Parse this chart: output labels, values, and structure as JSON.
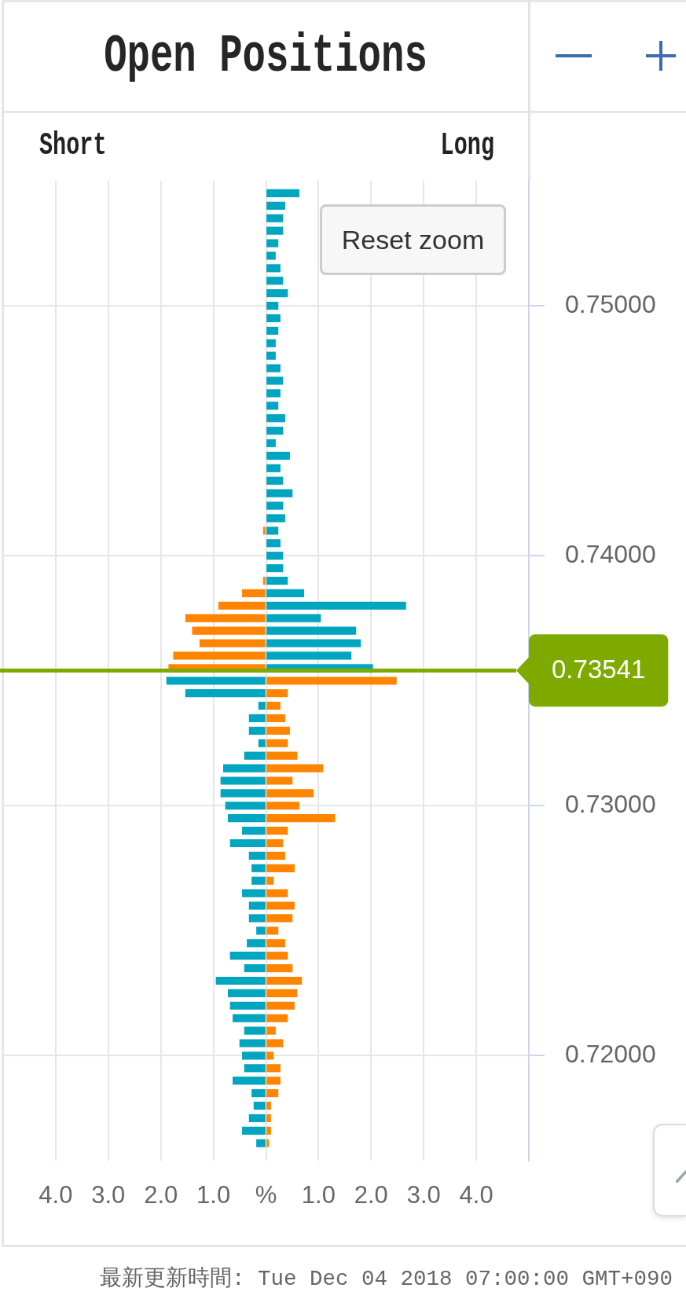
{
  "chart_data": {
    "type": "bar",
    "orientation": "horizontal",
    "stacked": true,
    "title": "Open Positions",
    "x": [
      0.7545,
      0.754,
      0.7535,
      0.753,
      0.7525,
      0.752,
      0.7515,
      0.751,
      0.7505,
      0.75,
      0.7495,
      0.749,
      0.7485,
      0.748,
      0.7475,
      0.747,
      0.7465,
      0.746,
      0.7455,
      0.745,
      0.7445,
      0.744,
      0.7435,
      0.743,
      0.7425,
      0.742,
      0.7415,
      0.741,
      0.7405,
      0.74,
      0.7395,
      0.739,
      0.7385,
      0.738,
      0.7375,
      0.737,
      0.7365,
      0.736,
      0.7355,
      0.735,
      0.7345,
      0.734,
      0.7335,
      0.733,
      0.7325,
      0.732,
      0.7315,
      0.731,
      0.7305,
      0.73,
      0.7295,
      0.729,
      0.7285,
      0.728,
      0.7275,
      0.727,
      0.7265,
      0.726,
      0.7255,
      0.725,
      0.7245,
      0.724,
      0.7235,
      0.723,
      0.7225,
      0.722,
      0.7215,
      0.721,
      0.7205,
      0.72,
      0.7195,
      0.719,
      0.7185,
      0.718,
      0.7175,
      0.717,
      0.7165
    ],
    "series": [
      {
        "values": [
          0.63,
          0.36,
          0.32,
          0.32,
          0.23,
          0.18,
          0.27,
          0.32,
          0.41,
          0.23,
          0.27,
          0.23,
          0.18,
          0.18,
          0.27,
          0.32,
          0.27,
          0.23,
          0.36,
          0.32,
          0.18,
          0.45,
          0.27,
          0.32,
          0.5,
          0.32,
          0.36,
          0.23,
          0.27,
          0.32,
          0.32,
          0.41,
          0.72,
          2.66,
          1.04,
          1.71,
          1.8,
          1.62,
          2.03,
          2.48,
          0.41,
          0.27,
          0.36,
          0.45,
          0.41,
          0.59,
          1.08,
          0.5,
          0.9,
          0.63,
          1.31,
          0.41,
          0.32,
          0.36,
          0.54,
          0.14,
          0.41,
          0.54,
          0.5,
          0.23,
          0.36,
          0.41,
          0.5,
          0.68,
          0.59,
          0.54,
          0.41,
          0.18,
          0.32,
          0.14,
          0.27,
          0.27,
          0.23,
          0.09,
          0.09,
          0.09,
          0.05
        ],
        "colors": [
          "#00a5bf",
          "#00a5bf",
          "#00a5bf",
          "#00a5bf",
          "#00a5bf",
          "#00a5bf",
          "#00a5bf",
          "#00a5bf",
          "#00a5bf",
          "#00a5bf",
          "#00a5bf",
          "#00a5bf",
          "#00a5bf",
          "#00a5bf",
          "#00a5bf",
          "#00a5bf",
          "#00a5bf",
          "#00a5bf",
          "#00a5bf",
          "#00a5bf",
          "#00a5bf",
          "#00a5bf",
          "#00a5bf",
          "#00a5bf",
          "#00a5bf",
          "#00a5bf",
          "#00a5bf",
          "#00a5bf",
          "#00a5bf",
          "#00a5bf",
          "#00a5bf",
          "#00a5bf",
          "#00a5bf",
          "#00a5bf",
          "#00a5bf",
          "#00a5bf",
          "#00a5bf",
          "#00a5bf",
          "#00a5bf",
          "#ff8500",
          "#ff8500",
          "#ff8500",
          "#ff8500",
          "#ff8500",
          "#ff8500",
          "#ff8500",
          "#ff8500",
          "#ff8500",
          "#ff8500",
          "#ff8500",
          "#ff8500",
          "#ff8500",
          "#ff8500",
          "#ff8500",
          "#ff8500",
          "#ff8500",
          "#ff8500",
          "#ff8500",
          "#ff8500",
          "#ff8500",
          "#ff8500",
          "#ff8500",
          "#ff8500",
          "#ff8500",
          "#ff8500",
          "#ff8500",
          "#ff8500",
          "#ff8500",
          "#ff8500",
          "#ff8500",
          "#ff8500",
          "#ff8500",
          "#ff8500",
          "#ff8500",
          "#ff8500",
          "#ff8500",
          "#ff8500"
        ]
      },
      {
        "values": [
          null,
          null,
          null,
          null,
          null,
          null,
          null,
          null,
          null,
          null,
          null,
          null,
          null,
          null,
          null,
          null,
          null,
          null,
          null,
          null,
          null,
          null,
          null,
          null,
          null,
          null,
          null,
          -0.05,
          null,
          null,
          null,
          -0.05,
          -0.45,
          -0.9,
          -1.53,
          -1.4,
          -1.26,
          -1.76,
          -1.85,
          -1.89,
          -1.53,
          -0.14,
          -0.32,
          -0.32,
          -0.14,
          -0.41,
          -0.81,
          -0.86,
          -0.86,
          -0.77,
          -0.72,
          -0.45,
          -0.68,
          -0.32,
          -0.27,
          -0.27,
          -0.45,
          -0.32,
          -0.32,
          -0.18,
          -0.36,
          -0.68,
          -0.41,
          -0.95,
          -0.72,
          -0.68,
          -0.63,
          -0.41,
          -0.5,
          -0.45,
          -0.41,
          -0.63,
          -0.27,
          -0.23,
          -0.32,
          -0.45,
          -0.18
        ],
        "colors": [
          "#ff8500",
          "#ff8500",
          "#ff8500",
          "#ff8500",
          "#ff8500",
          "#ff8500",
          "#ff8500",
          "#ff8500",
          "#ff8500",
          "#ff8500",
          "#ff8500",
          "#ff8500",
          "#ff8500",
          "#ff8500",
          "#ff8500",
          "#ff8500",
          "#ff8500",
          "#ff8500",
          "#ff8500",
          "#ff8500",
          "#ff8500",
          "#ff8500",
          "#ff8500",
          "#ff8500",
          "#ff8500",
          "#ff8500",
          "#ff8500",
          "#ff8500",
          "#ff8500",
          "#ff8500",
          "#ff8500",
          "#ff8500",
          "#ff8500",
          "#ff8500",
          "#ff8500",
          "#ff8500",
          "#ff8500",
          "#ff8500",
          "#ff8500",
          "#00a5bf",
          "#00a5bf",
          "#00a5bf",
          "#00a5bf",
          "#00a5bf",
          "#00a5bf",
          "#00a5bf",
          "#00a5bf",
          "#00a5bf",
          "#00a5bf",
          "#00a5bf",
          "#00a5bf",
          "#00a5bf",
          "#00a5bf",
          "#00a5bf",
          "#00a5bf",
          "#00a5bf",
          "#00a5bf",
          "#00a5bf",
          "#00a5bf",
          "#00a5bf",
          "#00a5bf",
          "#00a5bf",
          "#00a5bf",
          "#00a5bf",
          "#00a5bf",
          "#00a5bf",
          "#00a5bf",
          "#00a5bf",
          "#00a5bf",
          "#00a5bf",
          "#00a5bf",
          "#00a5bf",
          "#00a5bf",
          "#00a5bf",
          "#00a5bf",
          "#00a5bf",
          "#00a5bf"
        ]
      }
    ],
    "xlim": [
      -5,
      5
    ],
    "xticks": [
      {
        "value": -4,
        "label": "4.0"
      },
      {
        "value": -3,
        "label": "3.0"
      },
      {
        "value": -2,
        "label": "2.0"
      },
      {
        "value": -1,
        "label": "1.0"
      },
      {
        "value": 0,
        "label": "%"
      },
      {
        "value": 1,
        "label": "1.0"
      },
      {
        "value": 2,
        "label": "2.0"
      },
      {
        "value": 3,
        "label": "3.0"
      },
      {
        "value": 4,
        "label": "4.0"
      }
    ],
    "ylim": [
      0.7158,
      0.755
    ],
    "yticks": [
      {
        "value": 0.72,
        "label": "0.72000"
      },
      {
        "value": 0.73,
        "label": "0.73000"
      },
      {
        "value": 0.74,
        "label": "0.74000"
      },
      {
        "value": 0.75,
        "label": "0.75000"
      }
    ],
    "grid": true,
    "ref_lines": [
      {
        "axis": "y",
        "value": 0.73541,
        "label": "0.73541",
        "color": "#7eaa00"
      }
    ],
    "annotations": [
      "Short",
      "Long",
      "Reset zoom",
      "最新更新時間: Tue Dec 04 2018 07:00:00 GMT+090"
    ]
  }
}
